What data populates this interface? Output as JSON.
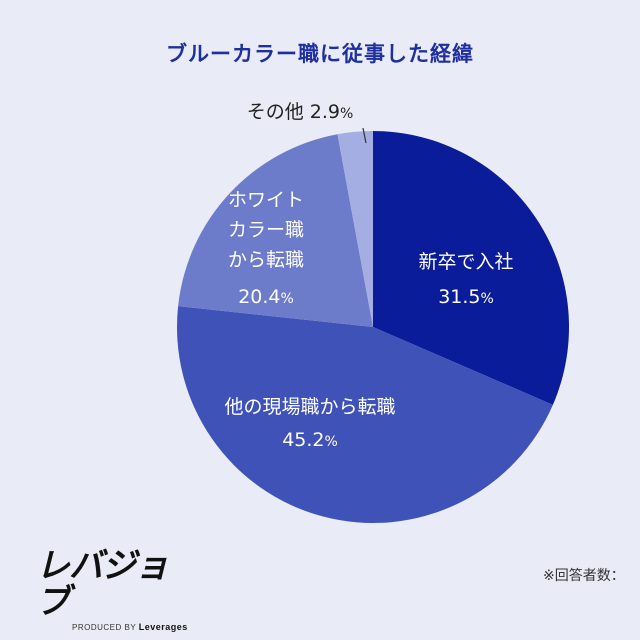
{
  "chart_data": {
    "type": "pie",
    "title": "ブルーカラー職に従事した経緯",
    "unit": "%",
    "slices": [
      {
        "label_lines": [
          "新卒で入社"
        ],
        "value": 31.5,
        "value_text": "31.5",
        "color": "#0a1c9a"
      },
      {
        "label_lines": [
          "他の現場職から転職"
        ],
        "value": 45.2,
        "value_text": "45.2",
        "color": "#3f52b8"
      },
      {
        "label_lines": [
          "ホワイト",
          "カラー職",
          "から転職"
        ],
        "value": 20.4,
        "value_text": "20.4",
        "color": "#6d7bcb"
      },
      {
        "label_lines": [
          "その他"
        ],
        "value": 2.9,
        "value_text": "2.9",
        "color": "#a5aee2"
      }
    ],
    "start_angle_deg": 0,
    "direction": "clockwise"
  },
  "branding": {
    "logo_text": "レバジョブ",
    "produced_by": "PRODUCED BY",
    "brand": "Leverages"
  },
  "footnote": "※回答者数："
}
